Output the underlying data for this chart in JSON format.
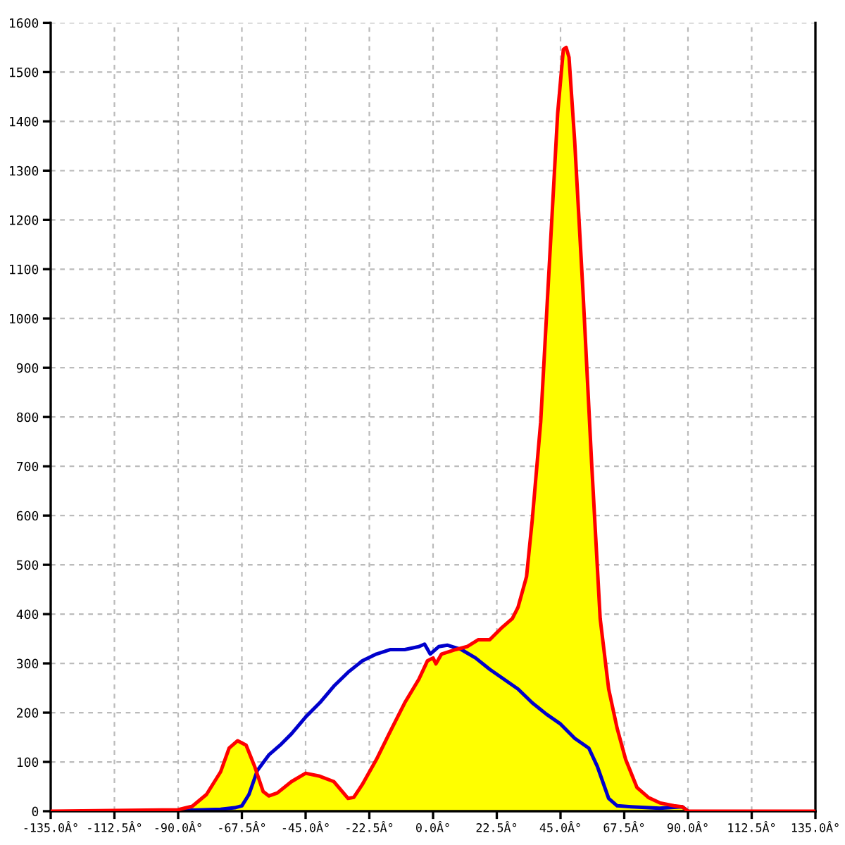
{
  "chart_data": {
    "type": "area",
    "color": "#ffff00",
    "xlim": [
      -135,
      135
    ],
    "ylim": [
      0,
      1600
    ],
    "xticks": [
      {
        "value": -135,
        "label": "-135.0Â°"
      },
      {
        "value": -112.5,
        "label": "-112.5Â°"
      },
      {
        "value": -90,
        "label": "-90.0Â°"
      },
      {
        "value": -67.5,
        "label": "-67.5Â°"
      },
      {
        "value": -45,
        "label": "-45.0Â°"
      },
      {
        "value": -22.5,
        "label": "-22.5Â°"
      },
      {
        "value": 0,
        "label": "0.0Â°"
      },
      {
        "value": 22.5,
        "label": "22.5Â°"
      },
      {
        "value": 45,
        "label": "45.0Â°"
      },
      {
        "value": 67.5,
        "label": "67.5Â°"
      },
      {
        "value": 90,
        "label": "90.0Â°"
      },
      {
        "value": 112.5,
        "label": "112.5Â°"
      },
      {
        "value": 135,
        "label": "135.0Â°"
      }
    ],
    "yticks": [
      0,
      100,
      200,
      300,
      400,
      500,
      600,
      700,
      800,
      900,
      1000,
      1100,
      1200,
      1300,
      1400,
      1500,
      1600
    ],
    "grid": true,
    "line_style": "solid",
    "series": [
      {
        "color": "#ff0000",
        "x": [
          -135,
          -90,
          -85,
          -80,
          -75,
          -72,
          -69,
          -66,
          -63,
          -60,
          -58,
          -55,
          -50,
          -45,
          -40,
          -35,
          -30,
          -28,
          -25,
          -20,
          -15,
          -10,
          -5,
          -2,
          0,
          1,
          3,
          8,
          12,
          16,
          20,
          24,
          28,
          30,
          33,
          35,
          38,
          41,
          44,
          46,
          47,
          48,
          50,
          53,
          56,
          59,
          62,
          65,
          68,
          72,
          76,
          80,
          85,
          88,
          90,
          135
        ],
        "values": [
          0,
          3,
          10,
          34,
          80,
          128,
          143,
          134,
          91,
          40,
          31,
          37,
          60,
          77,
          71,
          60,
          26,
          28,
          54,
          105,
          163,
          220,
          268,
          305,
          311,
          299,
          319,
          328,
          334,
          348,
          348,
          371,
          391,
          414,
          476,
          590,
          790,
          1104,
          1417,
          1546,
          1550,
          1530,
          1360,
          1047,
          705,
          391,
          248,
          168,
          105,
          48,
          28,
          17,
          11,
          9,
          0,
          0
        ]
      },
      {
        "type": "line",
        "color": "#0000cc",
        "x": [
          -90,
          -85,
          -75,
          -70,
          -67.5,
          -65,
          -62,
          -58,
          -54,
          -50,
          -45,
          -40,
          -35,
          -30,
          -25,
          -20,
          -15,
          -10,
          -5,
          -3,
          -1,
          2,
          5,
          10,
          15,
          20,
          25,
          30,
          35,
          40,
          45,
          50,
          55,
          58,
          62,
          65,
          70,
          80,
          88,
          90
        ],
        "values": [
          0,
          2,
          4,
          7,
          11,
          34,
          83,
          114,
          134,
          157,
          191,
          220,
          254,
          282,
          305,
          319,
          328,
          328,
          334,
          339,
          319,
          334,
          337,
          328,
          311,
          288,
          268,
          248,
          220,
          197,
          177,
          148,
          128,
          91,
          26,
          11,
          9,
          6,
          9,
          0
        ]
      }
    ]
  }
}
